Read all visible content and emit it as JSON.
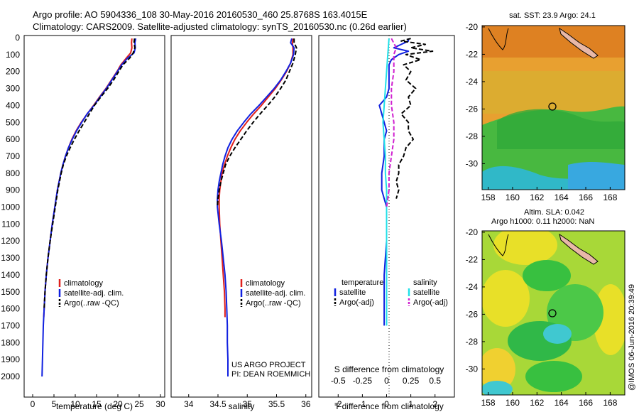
{
  "header": {
    "line1": "Argo profile: AO 5904336_108 30-May-2016 20160530_460 25.8768S 163.4015E",
    "line2": "Climatology: CARS2009. Satellite-adjusted climatology: synTS_20160530.nc (0.26d earlier)"
  },
  "depth_ticks": [
    "0",
    "100",
    "200",
    "300",
    "400",
    "500",
    "600",
    "700",
    "800",
    "900",
    "1000",
    "1100",
    "1200",
    "1300",
    "1400",
    "1500",
    "1600",
    "1700",
    "1800",
    "1900",
    "2000"
  ],
  "credit": "@IMOS 06-Jun-2016 20:39:49",
  "project": {
    "line1": "US ARGO PROJECT",
    "line2": "PI: DEAN ROEMMICH"
  },
  "colors": {
    "climatology": "#e0201c",
    "satellite": "#1020e0",
    "argo": "#000000",
    "sat_s": "#20e0e8",
    "argo_s": "#d020d0"
  },
  "chart_data": [
    {
      "type": "line",
      "title": "Temperature profile",
      "xlabel": "temperature (deg C)",
      "ylabel": "depth",
      "xlim": [
        -2,
        31
      ],
      "ylim": [
        2100,
        0
      ],
      "xticks": [
        "0",
        "5",
        "10",
        "15",
        "20",
        "25",
        "30"
      ],
      "legend": [
        "climatology",
        "satellite-adj. clim.",
        "Argo(..raw -QC)"
      ],
      "series": [
        {
          "name": "climatology",
          "depth": [
            5,
            30,
            60,
            90,
            120,
            160,
            200,
            250,
            300,
            350,
            400,
            450,
            500,
            550,
            600,
            650,
            700,
            750,
            800,
            850,
            900,
            950,
            1000,
            1100,
            1200,
            1300,
            1400,
            1500,
            1600,
            1650
          ],
          "values": [
            23.3,
            23.2,
            23.3,
            23.0,
            22.0,
            20.7,
            19.8,
            18.5,
            17.2,
            15.7,
            14.3,
            12.8,
            11.4,
            10.2,
            9.2,
            8.4,
            7.7,
            7.1,
            6.6,
            6.2,
            5.8,
            5.5,
            5.2,
            4.6,
            4.1,
            3.6,
            3.2,
            2.9,
            2.7,
            2.6
          ]
        },
        {
          "name": "satellite-adj. clim.",
          "depth": [
            5,
            30,
            60,
            90,
            120,
            160,
            200,
            250,
            300,
            350,
            400,
            450,
            500,
            550,
            600,
            650,
            700,
            750,
            800,
            850,
            900,
            950,
            1000,
            1100,
            1200,
            1300,
            1400,
            1500,
            1600,
            1700,
            1800,
            1900,
            2000
          ],
          "values": [
            24.2,
            24.0,
            24.1,
            23.8,
            22.3,
            20.9,
            19.9,
            18.6,
            17.3,
            15.8,
            14.4,
            12.8,
            11.5,
            10.3,
            9.3,
            8.4,
            7.7,
            7.1,
            6.6,
            6.2,
            5.8,
            5.5,
            5.2,
            4.6,
            4.1,
            3.6,
            3.2,
            2.9,
            2.7,
            2.5,
            2.4,
            2.3,
            2.2
          ]
        },
        {
          "name": "Argo(..raw -QC)",
          "depth": [
            5,
            30,
            60,
            90,
            120,
            160,
            200,
            250,
            300,
            350,
            400,
            450,
            500,
            550,
            600,
            650,
            700,
            750,
            800,
            850,
            900,
            950,
            1000,
            1100,
            1200,
            1300,
            1400,
            1500,
            1600
          ],
          "values": [
            23.9,
            23.8,
            24.0,
            23.6,
            22.8,
            21.2,
            20.2,
            19.0,
            17.6,
            16.0,
            14.5,
            13.3,
            12.1,
            10.9,
            9.8,
            8.8,
            7.9,
            7.2,
            6.7,
            6.3,
            5.9,
            5.6,
            5.3,
            4.7,
            4.1,
            3.6,
            3.2,
            2.9,
            2.7
          ]
        }
      ]
    },
    {
      "type": "line",
      "title": "Salinity profile",
      "xlabel": "salinity",
      "ylabel": "depth",
      "xlim": [
        33.7,
        36.1
      ],
      "ylim": [
        2100,
        0
      ],
      "xticks": [
        "34",
        "34.5",
        "35",
        "35.5",
        "36"
      ],
      "legend": [
        "climatology",
        "satellite-adj. clim.",
        "Argo(..raw -QC)"
      ],
      "series": [
        {
          "name": "climatology",
          "depth": [
            5,
            30,
            60,
            100,
            150,
            200,
            250,
            300,
            350,
            400,
            450,
            500,
            550,
            600,
            650,
            700,
            750,
            800,
            850,
            900,
            950,
            1000,
            1100,
            1200,
            1300,
            1400,
            1500,
            1600,
            1650
          ],
          "values": [
            35.78,
            35.77,
            35.78,
            35.78,
            35.74,
            35.67,
            35.58,
            35.48,
            35.36,
            35.24,
            35.11,
            34.99,
            34.88,
            34.79,
            34.72,
            34.66,
            34.61,
            34.57,
            34.55,
            34.53,
            34.52,
            34.52,
            34.53,
            34.55,
            34.57,
            34.59,
            34.61,
            34.62,
            34.62
          ]
        },
        {
          "name": "satellite-adj. clim.",
          "depth": [
            5,
            30,
            60,
            100,
            150,
            200,
            250,
            300,
            350,
            400,
            450,
            500,
            550,
            600,
            650,
            700,
            750,
            800,
            850,
            900,
            950,
            1000,
            1100,
            1200,
            1300,
            1400,
            1500,
            1600,
            1700,
            1800,
            1900,
            2000
          ],
          "values": [
            35.76,
            35.74,
            35.8,
            35.79,
            35.74,
            35.66,
            35.57,
            35.46,
            35.33,
            35.2,
            35.06,
            34.94,
            34.83,
            34.74,
            34.67,
            34.62,
            34.58,
            34.55,
            34.52,
            34.5,
            34.49,
            34.49,
            34.52,
            34.56,
            34.59,
            34.62,
            34.64,
            34.65,
            34.66,
            34.66,
            34.67,
            34.67
          ]
        },
        {
          "name": "Argo(..raw -QC)",
          "depth": [
            5,
            30,
            60,
            100,
            150,
            200,
            250,
            300,
            350,
            400,
            450,
            500,
            550,
            600,
            650,
            700,
            750,
            800,
            850,
            900,
            950,
            1000
          ],
          "values": [
            35.8,
            35.8,
            35.84,
            35.82,
            35.78,
            35.72,
            35.66,
            35.57,
            35.47,
            35.35,
            35.22,
            35.1,
            34.99,
            34.89,
            34.79,
            34.7,
            34.63,
            34.59,
            34.55,
            34.52,
            34.5,
            34.49
          ]
        }
      ]
    },
    {
      "type": "line",
      "title": "Difference from climatology",
      "xlabel": "T difference from climatology",
      "xlabel_top": "S difference from climatology",
      "ylabel": "depth",
      "xlim": [
        -2.8,
        2.8
      ],
      "ylim": [
        2100,
        0
      ],
      "xticks": [
        "-2",
        "-1",
        "0",
        "1",
        "2"
      ],
      "xticks_top": [
        "-0.5",
        "-0.25",
        "0",
        "0.25",
        "0.5"
      ],
      "legend": {
        "temperature_header": "temperature",
        "salinity_header": "salinity",
        "satellite": "satellite",
        "argo": "Argo(-adj)"
      },
      "series": [
        {
          "name": "temperature satellite",
          "depth": [
            5,
            20,
            40,
            60,
            80,
            100,
            130,
            160,
            200,
            250,
            300,
            350,
            400,
            450,
            500,
            550,
            600,
            700,
            800,
            900,
            1000,
            1200,
            1400,
            1600,
            1700
          ],
          "values": [
            0.9,
            0.9,
            0.6,
            0.3,
            0.9,
            0.5,
            0.2,
            0.1,
            0.1,
            0.1,
            0.1,
            0.0,
            -0.3,
            -0.2,
            -0.1,
            0.0,
            -0.1,
            -0.1,
            -0.2,
            -0.2,
            0.0,
            0.0,
            -0.1,
            -0.1,
            -0.1
          ]
        },
        {
          "name": "temperature Argo(-adj)",
          "depth": [
            5,
            20,
            40,
            60,
            80,
            100,
            130,
            160,
            200,
            250,
            300,
            350,
            400,
            450,
            500,
            550,
            600,
            650,
            700,
            750,
            800,
            850,
            900,
            950
          ],
          "values": [
            1.0,
            0.6,
            1.6,
            1.0,
            1.9,
            0.8,
            1.4,
            0.7,
            1.0,
            0.8,
            1.2,
            0.9,
            1.0,
            0.6,
            0.9,
            0.9,
            1.1,
            0.8,
            0.7,
            0.5,
            0.5,
            0.4,
            0.5,
            0.4
          ]
        },
        {
          "name": "salinity satellite",
          "depth": [
            5,
            100,
            200,
            300,
            400,
            500,
            600,
            700,
            800,
            900,
            1000,
            1200,
            1400,
            1600,
            1700
          ],
          "values": [
            0.1,
            0.05,
            0.0,
            -0.05,
            -0.1,
            -0.15,
            -0.1,
            -0.05,
            -0.05,
            0.0,
            0.0,
            0.0,
            0.0,
            0.0,
            0.0
          ]
        },
        {
          "name": "salinity Argo(-adj)",
          "depth": [
            5,
            60,
            100,
            150,
            200,
            300,
            400,
            500,
            600,
            700,
            800,
            900,
            1000
          ],
          "values": [
            0.2,
            0.4,
            0.3,
            0.3,
            0.3,
            0.2,
            0.2,
            0.3,
            0.3,
            0.2,
            0.1,
            0.1,
            0.0
          ]
        }
      ]
    },
    {
      "type": "heatmap",
      "title": "sat. SST: 23.9 Argo: 24.1",
      "xlim": [
        157.5,
        169.2
      ],
      "ylim": [
        -31.9,
        -19.9
      ],
      "xticks": [
        "158",
        "160",
        "162",
        "164",
        "166",
        "168"
      ],
      "yticks": [
        "-20",
        "-22",
        "-24",
        "-26",
        "-28",
        "-30"
      ],
      "marker": {
        "lon": 163.4015,
        "lat": -25.8768
      }
    },
    {
      "type": "heatmap",
      "title_line1": "Altim. SLA: 0.042",
      "title_line2": "Argo h1000: 0.11 h2000: NaN",
      "xlim": [
        157.5,
        169.2
      ],
      "ylim": [
        -31.9,
        -19.9
      ],
      "xticks": [
        "158",
        "160",
        "162",
        "164",
        "166",
        "168"
      ],
      "yticks": [
        "-20",
        "-22",
        "-24",
        "-26",
        "-28",
        "-30"
      ],
      "marker": {
        "lon": 163.4015,
        "lat": -25.8768
      }
    }
  ]
}
